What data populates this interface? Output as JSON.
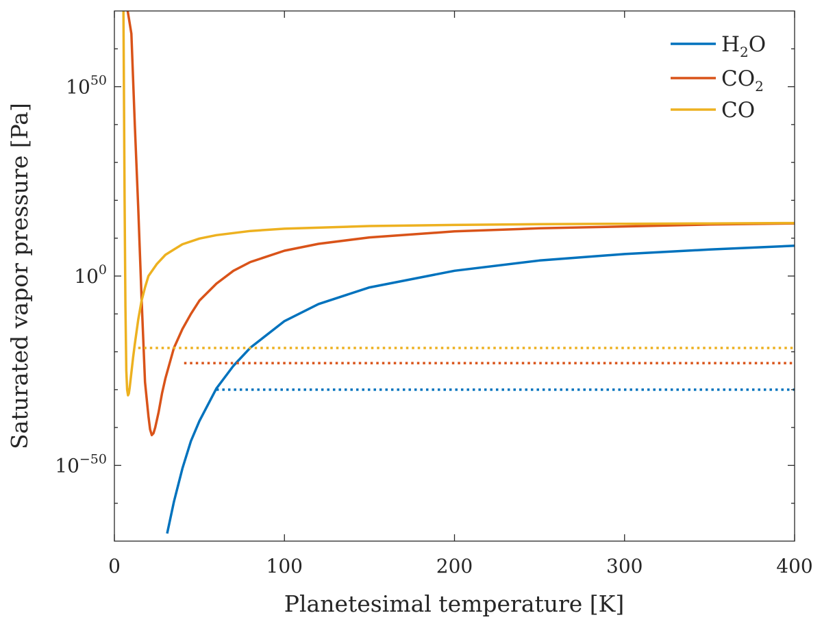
{
  "chart_data": {
    "type": "line",
    "xlabel": "Planetesimal temperature [K]",
    "ylabel": "Saturated vapor pressure [Pa]",
    "xlim": [
      0,
      400
    ],
    "ylim_log10": [
      -70,
      70
    ],
    "xticks": [
      0,
      100,
      200,
      300,
      400
    ],
    "xtick_labels": [
      "0",
      "100",
      "200",
      "300",
      "400"
    ],
    "yticks_log10": [
      -50,
      0,
      50
    ],
    "ytick_base": "10",
    "ytick_exponents": [
      "−50",
      "0",
      "50"
    ],
    "yminor_ticks_log10": [
      -60,
      -40,
      -30,
      -20,
      -10,
      10,
      20,
      30,
      40,
      60
    ],
    "legend_position": "top-right",
    "series": [
      {
        "name": "H2O",
        "legend_base": "H",
        "legend_sub": "2",
        "legend_rest": "O",
        "color": "#0072BD",
        "x": [
          31,
          35,
          40,
          45,
          50,
          60,
          70,
          80,
          100,
          120,
          150,
          200,
          250,
          300,
          350,
          400
        ],
        "log10_y": [
          -68.0,
          -59.6,
          -50.8,
          -43.6,
          -38.3,
          -29.7,
          -23.7,
          -18.9,
          -11.9,
          -7.4,
          -3.0,
          1.4,
          4.1,
          5.8,
          7.0,
          8.0
        ],
        "threshold_log10": -30,
        "threshold_x_start": 60
      },
      {
        "name": "CO2",
        "legend_base": "CO",
        "legend_sub": "2",
        "legend_rest": "",
        "color": "#D95319",
        "x": [
          7.8,
          10,
          12,
          14,
          16,
          18,
          20,
          21,
          22,
          23,
          24,
          26,
          28,
          30,
          35,
          40,
          45,
          50,
          60,
          70,
          80,
          100,
          120,
          150,
          200,
          250,
          300,
          350,
          400
        ],
        "log10_y": [
          70,
          64,
          40,
          18,
          -6,
          -28,
          -37,
          -40.5,
          -42,
          -41.5,
          -40,
          -36,
          -31,
          -27,
          -19,
          -14,
          -10,
          -6.5,
          -2.0,
          1.4,
          3.7,
          6.7,
          8.5,
          10.2,
          11.8,
          12.6,
          13.1,
          13.6,
          13.9
        ],
        "threshold_log10": -23,
        "threshold_x_start": 41
      },
      {
        "name": "CO",
        "legend_base": "CO",
        "legend_sub": "",
        "legend_rest": "",
        "color": "#EDB120",
        "x": [
          5.3,
          5.6,
          6,
          6.5,
          7,
          7.5,
          8,
          8.5,
          9,
          10,
          11,
          12,
          14,
          16,
          18,
          20,
          25,
          30,
          40,
          50,
          60,
          80,
          100,
          150,
          200,
          250,
          300,
          350,
          400
        ],
        "log10_y": [
          70,
          50,
          20,
          -8,
          -25,
          -30,
          -31.5,
          -31,
          -29.5,
          -25.5,
          -21.5,
          -18,
          -11.5,
          -6.5,
          -3,
          0,
          3.2,
          5.6,
          8.4,
          9.9,
          10.8,
          11.9,
          12.5,
          13.2,
          13.5,
          13.7,
          13.8,
          13.9,
          14.0
        ],
        "threshold_log10": -19,
        "threshold_x_start": 14
      }
    ]
  }
}
